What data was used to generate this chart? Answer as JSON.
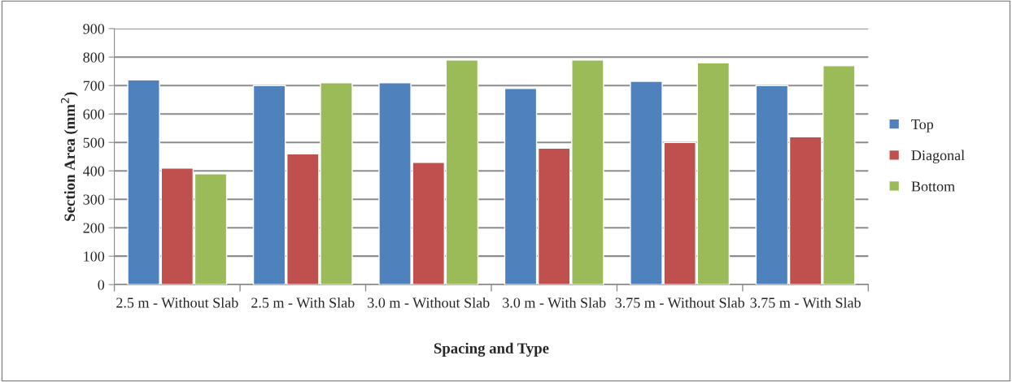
{
  "chart_data": {
    "type": "bar",
    "xlabel": "Spacing and Type",
    "ylabel": "Section Area (mm$^{2}$)",
    "categories": [
      "2.5 m - Without Slab",
      "2.5 m - With Slab",
      "3.0 m - Without Slab",
      "3.0 m - With Slab",
      "3.75 m - Without Slab",
      "3.75 m - With Slab"
    ],
    "series": [
      {
        "name": "Top",
        "color": "#4f81bd",
        "values": [
          720,
          700,
          710,
          690,
          715,
          700
        ]
      },
      {
        "name": "Diagonal",
        "color": "#c0504d",
        "values": [
          410,
          460,
          430,
          480,
          500,
          520
        ]
      },
      {
        "name": "Bottom",
        "color": "#9bbb59",
        "values": [
          390,
          710,
          790,
          790,
          780,
          770
        ]
      }
    ],
    "ylim": [
      0,
      900
    ],
    "yticks": [
      0,
      100,
      200,
      300,
      400,
      500,
      600,
      700,
      800,
      900
    ],
    "grid": "y",
    "legend": "right"
  }
}
